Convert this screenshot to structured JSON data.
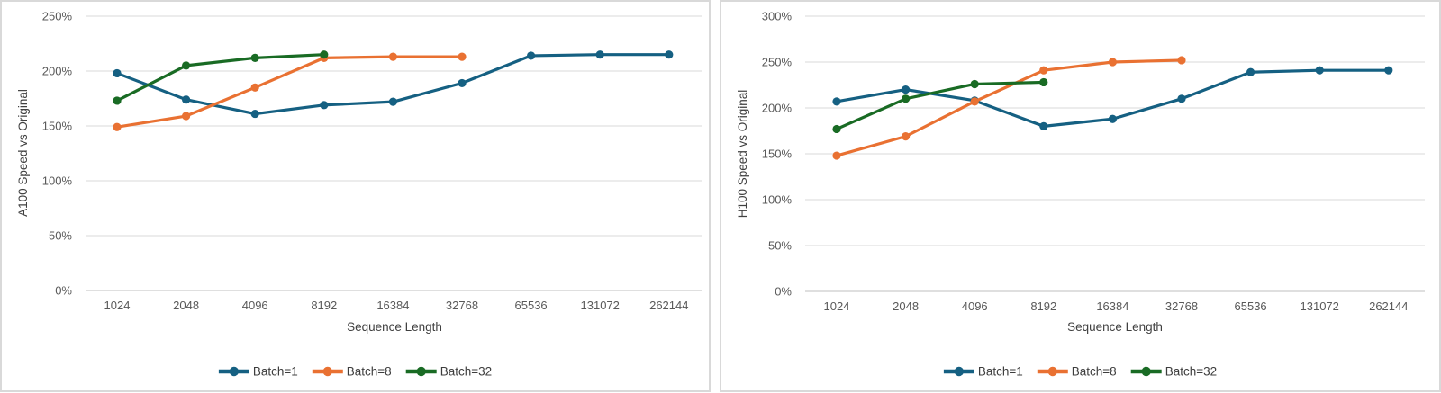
{
  "colors": {
    "accent_blue": "#156082",
    "accent_orange": "#E97132",
    "accent_green": "#196B24",
    "gridline": "#D9D9D9",
    "axis_line": "#BFBFBF",
    "tick_text": "#595959",
    "title_text": "#404040",
    "panel_border": "#D9D9D9",
    "background": "#FFFFFF"
  },
  "chart_data": [
    {
      "type": "line",
      "ylabel": "A100 Speed vs Original",
      "xlabel": "Sequence Length",
      "categories": [
        "1024",
        "2048",
        "4096",
        "8192",
        "16384",
        "32768",
        "65536",
        "131072",
        "262144"
      ],
      "ytick_labels": [
        "0%",
        "50%",
        "100%",
        "150%",
        "200%",
        "250%"
      ],
      "ylim": [
        0,
        250
      ],
      "grid": true,
      "legend_position": "bottom",
      "series": [
        {
          "name": "Batch=1",
          "color": "#156082",
          "values_pct": [
            198,
            174,
            161,
            169,
            172,
            189,
            214,
            215,
            215
          ]
        },
        {
          "name": "Batch=8",
          "color": "#E97132",
          "values_pct": [
            149,
            159,
            185,
            212,
            213,
            213
          ]
        },
        {
          "name": "Batch=32",
          "color": "#196B24",
          "values_pct": [
            173,
            205,
            212,
            215
          ]
        }
      ]
    },
    {
      "type": "line",
      "ylabel": "H100 Speed vs Original",
      "xlabel": "Sequence Length",
      "categories": [
        "1024",
        "2048",
        "4096",
        "8192",
        "16384",
        "32768",
        "65536",
        "131072",
        "262144"
      ],
      "ytick_labels": [
        "0%",
        "50%",
        "100%",
        "150%",
        "200%",
        "250%",
        "300%"
      ],
      "ylim": [
        0,
        300
      ],
      "grid": true,
      "legend_position": "bottom",
      "series": [
        {
          "name": "Batch=1",
          "color": "#156082",
          "values_pct": [
            207,
            220,
            208,
            180,
            188,
            210,
            239,
            241,
            241
          ]
        },
        {
          "name": "Batch=8",
          "color": "#E97132",
          "values_pct": [
            148,
            169,
            207,
            241,
            250,
            252
          ]
        },
        {
          "name": "Batch=32",
          "color": "#196B24",
          "values_pct": [
            177,
            210,
            226,
            228
          ]
        }
      ]
    }
  ]
}
